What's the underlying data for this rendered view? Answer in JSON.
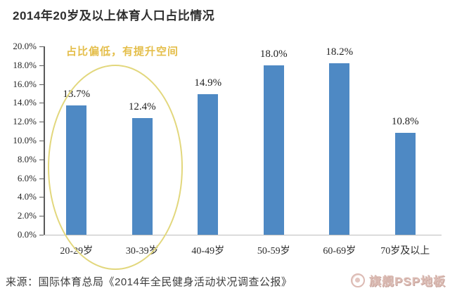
{
  "title": "2014年20岁及以上体育人口占比情况",
  "chart_data": {
    "type": "bar",
    "title": "2014年20岁及以上体育人口占比情况",
    "categories": [
      "20-29岁",
      "30-39岁",
      "40-49岁",
      "50-59岁",
      "60-69岁",
      "70岁及以上"
    ],
    "values": [
      13.7,
      12.4,
      14.9,
      18.0,
      18.2,
      10.8
    ],
    "value_labels": [
      "13.7%",
      "12.4%",
      "14.9%",
      "18.0%",
      "18.2%",
      "10.8%"
    ],
    "ylim": [
      0,
      20
    ],
    "y_ticks": [
      {
        "value": 0,
        "label": "0.0%"
      },
      {
        "value": 2,
        "label": "2.0%"
      },
      {
        "value": 4,
        "label": "4.0%"
      },
      {
        "value": 6,
        "label": "6.0%"
      },
      {
        "value": 8,
        "label": "8.0%"
      },
      {
        "value": 10,
        "label": "10.0%"
      },
      {
        "value": 12,
        "label": "12.0%"
      },
      {
        "value": 14,
        "label": "14.0%"
      },
      {
        "value": 16,
        "label": "16.0%"
      },
      {
        "value": 18,
        "label": "18.0%"
      },
      {
        "value": 20,
        "label": "20.0%"
      }
    ],
    "grid": false,
    "legend": null,
    "bar_color": "#4E89C4",
    "annotation": {
      "text": "占比偏低，有提升空间",
      "text_color": "#E4BE4A",
      "ellipse_color": "#E2D77C",
      "highlighted_categories": [
        "20-29岁",
        "30-39岁"
      ]
    }
  },
  "source": "来源：国际体育总局《2014年全民健身活动状况调查公报》",
  "watermark": {
    "text": "旗舰PSP地板",
    "icon": "brand-logo-circle"
  }
}
